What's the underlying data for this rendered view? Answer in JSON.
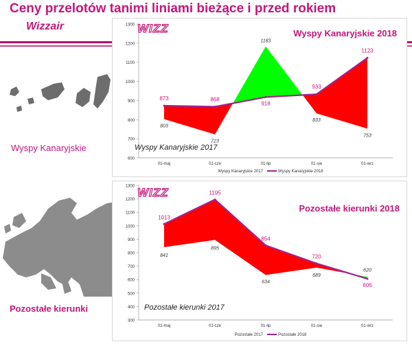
{
  "slide": {
    "title": "Ceny przelotów tanimi liniami bieżące i przed rokiem",
    "subtitle": "Wizzair",
    "region_labels": [
      "Wyspy Kanaryjskie",
      "Pozostałe kierunki"
    ],
    "logo_text": "WIZZ",
    "colors": {
      "title": "#c2187a",
      "band": "#b0106e",
      "current_line": "#a3238c",
      "lower_area": "#ff0000",
      "higher_area": "#00ff00"
    }
  },
  "chart_data": [
    {
      "type": "area",
      "title": "Wyspy Kanaryjskie 2018",
      "series_2017_label": "Wyspy Kanaryjskie 2017",
      "categories": [
        "01-maj",
        "01-cze",
        "01-lip",
        "01-sie",
        "01-wrz"
      ],
      "series": [
        {
          "name": "Wyspy Kanaryjskie 2017",
          "values": [
            803,
            723,
            1183,
            833,
            753
          ],
          "labels": [
            "803",
            "723",
            "1183",
            "833",
            "753"
          ]
        },
        {
          "name": "Wyspy Kanaryjskie 2018",
          "values": [
            873,
            868,
            918,
            933,
            1123
          ],
          "labels": [
            "873",
            "868",
            "918",
            "933",
            "1123"
          ]
        }
      ],
      "ylim": [
        600,
        1300
      ],
      "yticks": [
        600,
        700,
        800,
        900,
        1000,
        1100,
        1200,
        1300
      ],
      "yticks_labels": [
        "600",
        "700",
        "800",
        "900",
        "1000",
        "1100",
        "1200",
        "1300"
      ],
      "legend": {
        "position": "bottom",
        "items": [
          "Wyspy Kanaryjskie 2017",
          "Wyspy Kanaryjskie 2018"
        ]
      }
    },
    {
      "type": "area",
      "title": "Pozostałe kierunki 2018",
      "series_2017_label": "Pozostałe kierunki 2017",
      "categories": [
        "01-maj",
        "01-cze",
        "01-lip",
        "01-sie",
        "01-wrz"
      ],
      "series": [
        {
          "name": "Pozostałe 2017",
          "values": [
            841,
            895,
            634,
            689,
            620
          ],
          "labels": [
            "841",
            "895",
            "634",
            "689",
            "620"
          ]
        },
        {
          "name": "Pozostałe 2018",
          "values": [
            1013,
            1195,
            854,
            720,
            606
          ],
          "labels": [
            "1013",
            "1195",
            "854",
            "720",
            "606"
          ]
        }
      ],
      "ylim": [
        300,
        1300
      ],
      "yticks": [
        300,
        400,
        500,
        600,
        700,
        800,
        900,
        1000,
        1100,
        1200,
        1300
      ],
      "yticks_labels": [
        "300",
        "400",
        "500",
        "600",
        "700",
        "800",
        "900",
        "1000",
        "1100",
        "1200",
        "1300"
      ],
      "legend": {
        "position": "bottom",
        "items": [
          "Pozostałe 2017",
          "Pozostałe 2018"
        ]
      }
    }
  ]
}
